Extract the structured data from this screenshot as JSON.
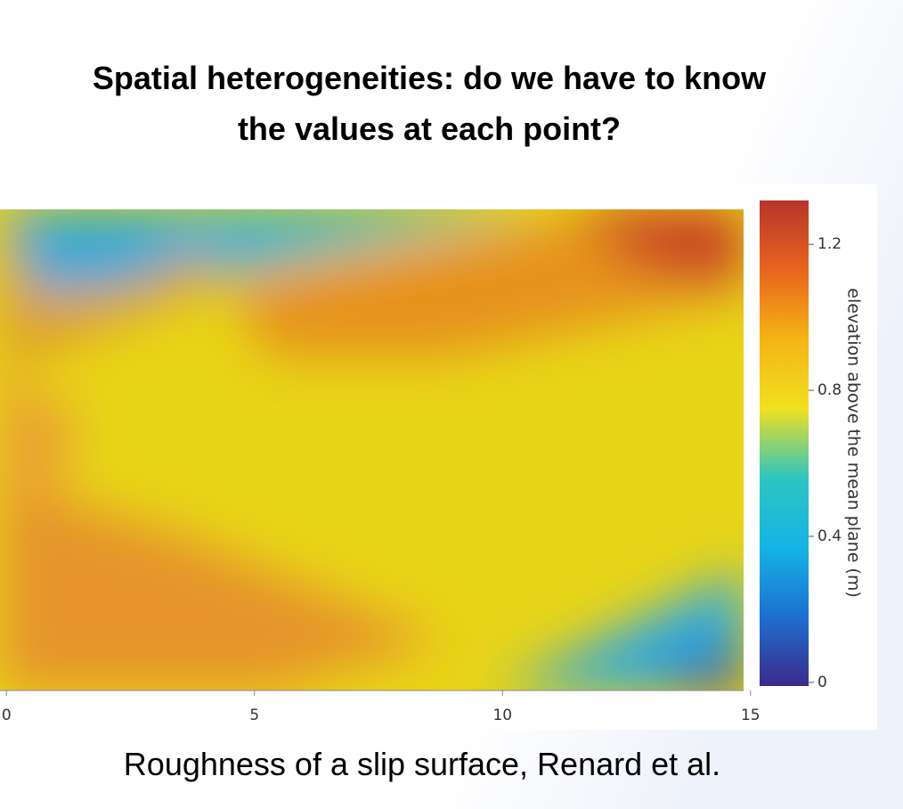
{
  "chart_data": {
    "type": "heatmap",
    "title": "Spatial heterogeneities: do we have to know the values at each point?",
    "caption": "Roughness of a slip surface, Renard et al.",
    "xlim": [
      -0.13,
      14.86
    ],
    "xticks": [
      0,
      5,
      10,
      15
    ],
    "colorbar_label": "elevation above the mean plane (m)",
    "zlim": [
      -0.01,
      1.32
    ],
    "zticks": [
      0,
      0.4,
      0.8,
      1.2
    ],
    "colormap": [
      "#3b2a8c",
      "#1e6fd0",
      "#14b4e6",
      "#2ec4c0",
      "#f0e020",
      "#f5b414",
      "#e8641e",
      "#b8342a"
    ]
  }
}
